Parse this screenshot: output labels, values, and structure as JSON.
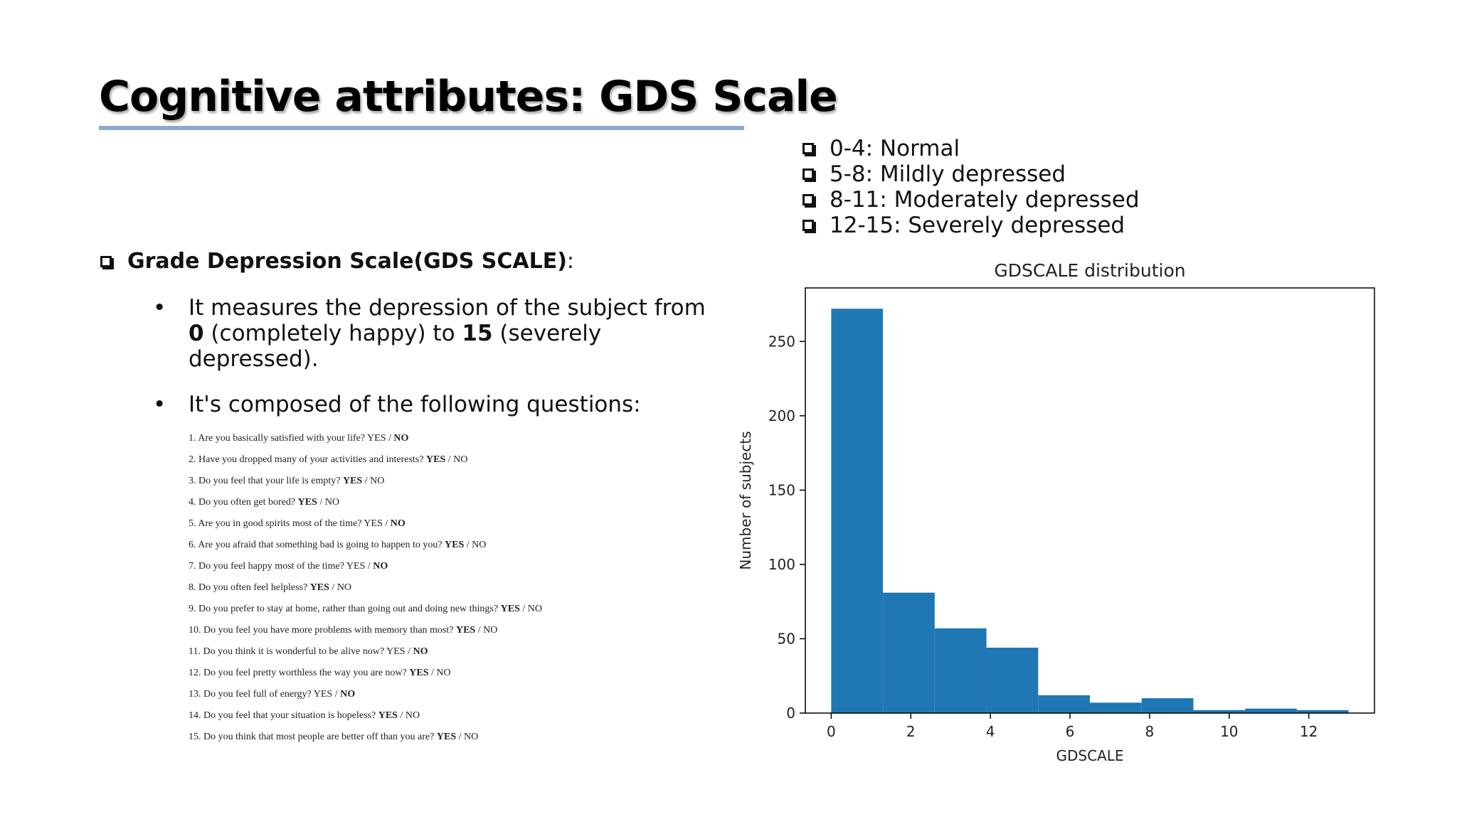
{
  "slide": {
    "title": "Cognitive attributes: GDS Scale"
  },
  "legend": {
    "items": [
      "0-4: Normal",
      "5-8: Mildly depressed",
      "8-11: Moderately depressed",
      "12-15: Severely depressed"
    ]
  },
  "gds": {
    "heading": "Grade Depression Scale",
    "heading_paren": "(GDS SCALE)",
    "heading_colon": ":",
    "bullet1_pre": "It measures the depression of the subject from ",
    "bullet1_min": "0",
    "bullet1_mid": " (completely happy) to ",
    "bullet1_max": "15",
    "bullet1_post": " (severely depressed).",
    "bullet2": "It's composed of the following questions:",
    "bullet_glyph": "•",
    "questions": [
      {
        "text": "1. Are you basically satisfied with your life?",
        "answer": "NO"
      },
      {
        "text": "2. Have you dropped many of your activities and interests?",
        "answer": "YES"
      },
      {
        "text": "3. Do you feel that your life is empty?",
        "answer": "YES"
      },
      {
        "text": "4. Do you often get bored?",
        "answer": "YES"
      },
      {
        "text": "5. Are you in good spirits most of the time?",
        "answer": "NO"
      },
      {
        "text": "6. Are you afraid that something bad is going to happen to you?",
        "answer": "YES"
      },
      {
        "text": "7. Do you feel happy most of the time?",
        "answer": "NO"
      },
      {
        "text": "8. Do you often feel helpless?",
        "answer": "YES"
      },
      {
        "text": "9. Do you prefer to stay at home, rather than going out and doing new things?",
        "answer": "YES"
      },
      {
        "text": "10. Do you feel you have more problems with memory than most?",
        "answer": "YES"
      },
      {
        "text": "11. Do you think it is wonderful to be alive now?",
        "answer": "NO"
      },
      {
        "text": "12. Do you feel pretty worthless the way you are now?",
        "answer": "YES"
      },
      {
        "text": "13. Do you feel full of energy?",
        "answer": "NO"
      },
      {
        "text": "14. Do you feel that your situation is hopeless?",
        "answer": "YES"
      },
      {
        "text": "15. Do you think that most people are better off than you are?",
        "answer": "YES"
      }
    ],
    "yes_label": "YES",
    "no_label": "NO",
    "sep": " / "
  },
  "colors": {
    "bar": "#1f77b4",
    "title_rule": "#8ea9d1"
  },
  "chart_data": {
    "type": "bar",
    "title": "GDSCALE distribution",
    "xlabel": "GDSCALE",
    "ylabel": "Number of subjects",
    "bins": [
      {
        "x0": 0.0,
        "x1": 1.3,
        "value": 272
      },
      {
        "x0": 1.3,
        "x1": 2.6,
        "value": 81
      },
      {
        "x0": 2.6,
        "x1": 3.9,
        "value": 57
      },
      {
        "x0": 3.9,
        "x1": 5.2,
        "value": 44
      },
      {
        "x0": 5.2,
        "x1": 6.5,
        "value": 12
      },
      {
        "x0": 6.5,
        "x1": 7.8,
        "value": 7
      },
      {
        "x0": 7.8,
        "x1": 9.1,
        "value": 10
      },
      {
        "x0": 9.1,
        "x1": 10.4,
        "value": 2
      },
      {
        "x0": 10.4,
        "x1": 11.7,
        "value": 3
      },
      {
        "x0": 11.7,
        "x1": 13.0,
        "value": 2
      }
    ],
    "xlim": [
      -0.65,
      13.65
    ],
    "ylim": [
      0,
      286
    ],
    "xticks": [
      0,
      2,
      4,
      6,
      8,
      10,
      12
    ],
    "yticks": [
      0,
      50,
      100,
      150,
      200,
      250
    ],
    "grid": false
  }
}
